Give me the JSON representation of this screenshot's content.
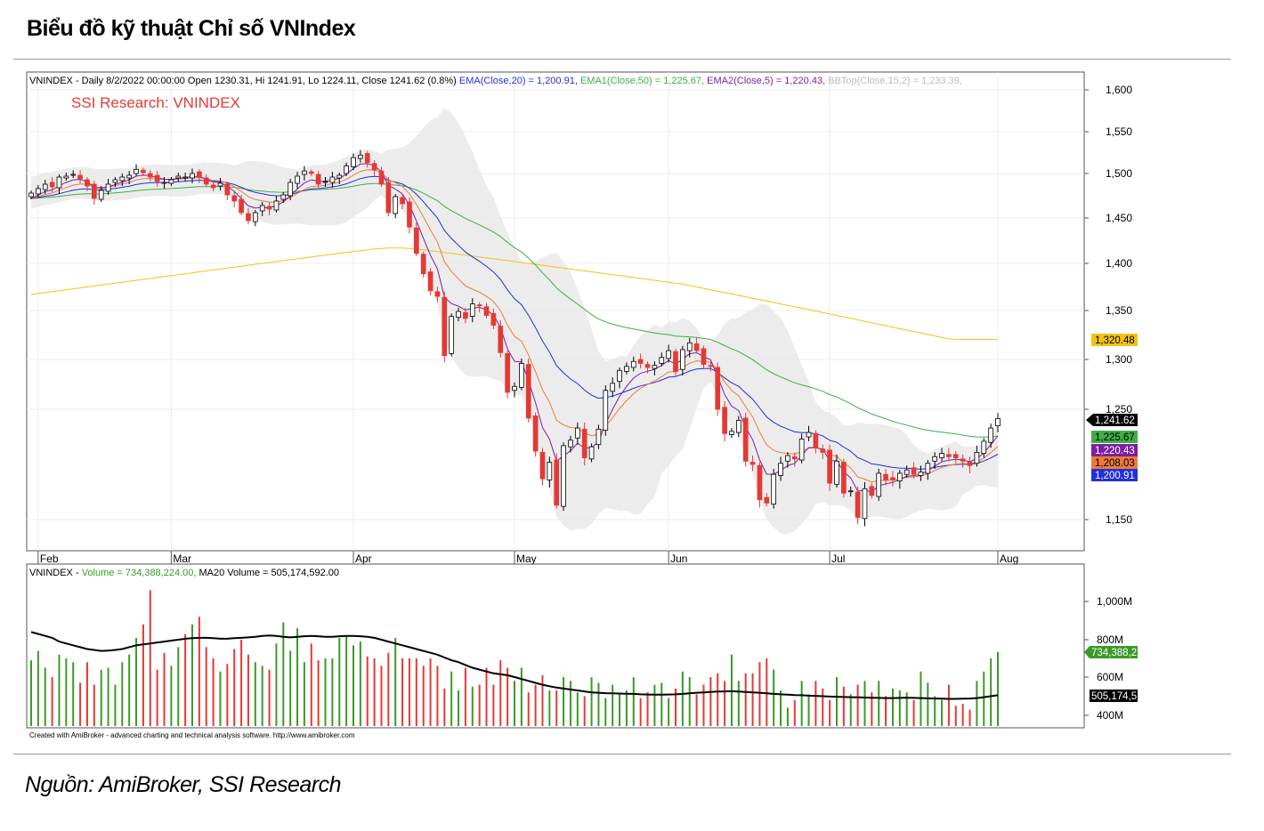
{
  "title": "Biểu đồ kỹ thuật Chỉ số VNIndex",
  "source": "Nguồn: AmiBroker, SSI Research",
  "chart_data": {
    "type": "candlestick",
    "colors": {
      "up": "#ffffff",
      "down": "#e53935",
      "ema20": "#1f2fe0",
      "ema50": "#3cb043",
      "ema5": "#7b1fa2",
      "ema_orange": "#f07a3a",
      "ma200": "#f2c316",
      "bband": "#e6e6e6",
      "vol_up": "#3a9a28",
      "vol_down": "#e53935",
      "vol_ma": "#000000"
    },
    "header": {
      "prefix": "VNINDEX - Daily 8/2/2022 00:00:00 Open 1230.31, Hi 1241.91, Lo 1224.11, Close 1241.62 (0.8%)",
      "ema20": "EMA(Close,20) = 1,200.91,",
      "ema50": "EMA1(Close,50) = 1,225.67,",
      "ema5": "EMA2(Close,5) = 1,220.43,",
      "bbtop": "BBTop(Close,15,2) = 1,233.39,"
    },
    "watermark": "SSI Research: VNINDEX",
    "y_ticks": [
      "1,600",
      "1,550",
      "1,500",
      "1,450",
      "1,400",
      "1,350",
      "1,300",
      "1,250",
      "1,150"
    ],
    "y_tick_values": [
      1600,
      1550,
      1500,
      1450,
      1400,
      1350,
      1300,
      1250,
      1150
    ],
    "ylim": [
      1120,
      1620
    ],
    "x_labels": [
      "Feb",
      "Mar",
      "Apr",
      "May",
      "Jun",
      "Jul",
      "Aug"
    ],
    "x_label_index": [
      1,
      20,
      46,
      69,
      91,
      114,
      138
    ],
    "right_labels": [
      {
        "text": "1,320.48",
        "value": 1320.48,
        "bg": "#f2c316",
        "fg": "#000000"
      },
      {
        "text": "1,241.62",
        "value": 1241.62,
        "bg": "#000000",
        "fg": "#ffffff"
      },
      {
        "text": "1,225.67",
        "value": 1225.67,
        "bg": "#3cb043",
        "fg": "#000000"
      },
      {
        "text": "1,220.43",
        "value": 1220.43,
        "bg": "#7b1fa2",
        "fg": "#ffffff"
      },
      {
        "text": "1,208.03",
        "value": 1208.03,
        "bg": "#f07a3a",
        "fg": "#000000"
      },
      {
        "text": "1,200.91",
        "value": 1200.91,
        "bg": "#1f2fe0",
        "fg": "#ffffff"
      }
    ],
    "close": [
      1478,
      1483,
      1488,
      1485,
      1496,
      1497,
      1499,
      1494,
      1486,
      1472,
      1481,
      1488,
      1493,
      1496,
      1498,
      1505,
      1501,
      1496,
      1491,
      1490,
      1493,
      1497,
      1496,
      1500,
      1496,
      1488,
      1484,
      1489,
      1476,
      1469,
      1456,
      1447,
      1456,
      1464,
      1460,
      1469,
      1476,
      1490,
      1497,
      1503,
      1500,
      1488,
      1491,
      1496,
      1498,
      1509,
      1519,
      1522,
      1513,
      1504,
      1488,
      1456,
      1474,
      1466,
      1440,
      1411,
      1389,
      1371,
      1365,
      1304,
      1344,
      1349,
      1342,
      1357,
      1355,
      1345,
      1335,
      1307,
      1267,
      1273,
      1296,
      1242,
      1212,
      1187,
      1202,
      1163,
      1217,
      1222,
      1233,
      1206,
      1216,
      1232,
      1269,
      1276,
      1289,
      1293,
      1298,
      1296,
      1292,
      1294,
      1302,
      1309,
      1288,
      1310,
      1317,
      1309,
      1295,
      1293,
      1250,
      1228,
      1230,
      1240,
      1203,
      1200,
      1168,
      1165,
      1191,
      1201,
      1208,
      1205,
      1223,
      1229,
      1215,
      1211,
      1183,
      1203,
      1174,
      1176,
      1152,
      1178,
      1172,
      1192,
      1186,
      1186,
      1192,
      1195,
      1191,
      1193,
      1201,
      1207,
      1210,
      1207,
      1206,
      1203,
      1199,
      1211,
      1221,
      1233,
      1241.62
    ],
    "ma200": [
      1367,
      1368,
      1369,
      1370,
      1371,
      1372,
      1373,
      1374,
      1375,
      1376,
      1377,
      1378,
      1379,
      1380,
      1381,
      1382,
      1383,
      1384,
      1385,
      1386,
      1387,
      1388,
      1389,
      1390,
      1391,
      1392,
      1393,
      1394,
      1395,
      1396,
      1397,
      1398,
      1399,
      1400,
      1401,
      1402,
      1403,
      1404,
      1405,
      1406,
      1407,
      1408,
      1409,
      1410,
      1411,
      1412,
      1413,
      1414,
      1415,
      1416,
      1416.5,
      1417,
      1417,
      1417,
      1416.5,
      1416,
      1415,
      1414,
      1413,
      1412,
      1411,
      1410,
      1409,
      1408,
      1407,
      1406,
      1405,
      1404,
      1403,
      1402,
      1401,
      1400,
      1399,
      1398,
      1397,
      1396,
      1395,
      1394,
      1393,
      1392,
      1391,
      1390,
      1389,
      1388,
      1387,
      1386,
      1385,
      1384,
      1383,
      1382,
      1381,
      1380,
      1379,
      1378,
      1376.5,
      1375,
      1373.5,
      1372,
      1370.5,
      1369,
      1367.5,
      1366,
      1364.5,
      1363,
      1361.5,
      1360,
      1358.5,
      1357,
      1355.5,
      1354,
      1352.5,
      1351,
      1349.5,
      1348,
      1346.5,
      1345,
      1343.5,
      1342,
      1340.5,
      1339,
      1337.5,
      1336,
      1334.5,
      1333,
      1331.5,
      1330,
      1328.5,
      1327,
      1325.5,
      1324,
      1322.5,
      1321,
      1320.48,
      1320.48,
      1320.48,
      1320.48,
      1320.48,
      1320.48,
      1320.48
    ],
    "volume_panel": {
      "header": {
        "prefix": "VNINDEX - ",
        "vol": "Volume = 734,388,224.00,",
        "ma": "MA20 Volume = 505,174,592.00"
      },
      "y_ticks": [
        "1,000M",
        "800M",
        "600M",
        "400M"
      ],
      "y_tick_values": [
        1000,
        800,
        600,
        400
      ],
      "ylim": [
        380,
        1120
      ],
      "last_volume_label": "734,388,2",
      "last_ma_label": "505,174,5",
      "last_volume": 734.39,
      "last_ma": 505.17,
      "volume": [
        690,
        740,
        650,
        600,
        720,
        700,
        680,
        570,
        680,
        560,
        640,
        650,
        560,
        680,
        720,
        810,
        880,
        1060,
        640,
        730,
        660,
        760,
        830,
        880,
        920,
        760,
        700,
        630,
        670,
        750,
        800,
        720,
        680,
        660,
        640,
        780,
        890,
        740,
        860,
        680,
        780,
        690,
        700,
        700,
        810,
        820,
        770,
        790,
        710,
        700,
        660,
        730,
        810,
        700,
        700,
        700,
        660,
        700,
        660,
        540,
        630,
        530,
        650,
        550,
        560,
        650,
        560,
        690,
        650,
        580,
        650,
        520,
        560,
        610,
        530,
        530,
        600,
        580,
        520,
        500,
        600,
        570,
        490,
        560,
        510,
        530,
        600,
        490,
        520,
        560,
        570,
        490,
        540,
        630,
        600,
        510,
        560,
        600,
        620,
        580,
        720,
        580,
        620,
        620,
        680,
        700,
        640,
        530,
        440,
        480,
        580,
        510,
        580,
        540,
        480,
        600,
        550,
        510,
        560,
        580,
        520,
        580,
        500,
        540,
        530,
        520,
        480,
        630,
        570,
        500,
        480,
        560,
        450,
        460,
        430,
        580,
        630,
        700,
        734.39
      ],
      "ma20": [
        840,
        830,
        820,
        810,
        790,
        780,
        770,
        760,
        750,
        745,
        740,
        742,
        745,
        750,
        760,
        770,
        775,
        780,
        785,
        790,
        795,
        800,
        805,
        808,
        810,
        810,
        808,
        805,
        805,
        808,
        810,
        812,
        815,
        820,
        822,
        820,
        815,
        812,
        815,
        818,
        820,
        818,
        815,
        815,
        818,
        820,
        820,
        818,
        815,
        810,
        800,
        790,
        780,
        770,
        760,
        750,
        740,
        730,
        720,
        705,
        690,
        680,
        665,
        650,
        640,
        630,
        620,
        615,
        610,
        600,
        590,
        580,
        570,
        560,
        552,
        545,
        540,
        535,
        530,
        525,
        520,
        518,
        516,
        515,
        514,
        513,
        512,
        510,
        509,
        508,
        508,
        509,
        510,
        512,
        515,
        518,
        520,
        522,
        524,
        525,
        526,
        524,
        522,
        520,
        518,
        515,
        512,
        510,
        508,
        506,
        505,
        503,
        502,
        500,
        498,
        497,
        496,
        495,
        494,
        493,
        492,
        491,
        490,
        490,
        491,
        492,
        491,
        490,
        489,
        488,
        487,
        486,
        486,
        487,
        488,
        490,
        495,
        500,
        505.17
      ]
    },
    "credit": "Created with AmiBroker - advanced charting and technical analysis software. http://www.amibroker.com"
  }
}
